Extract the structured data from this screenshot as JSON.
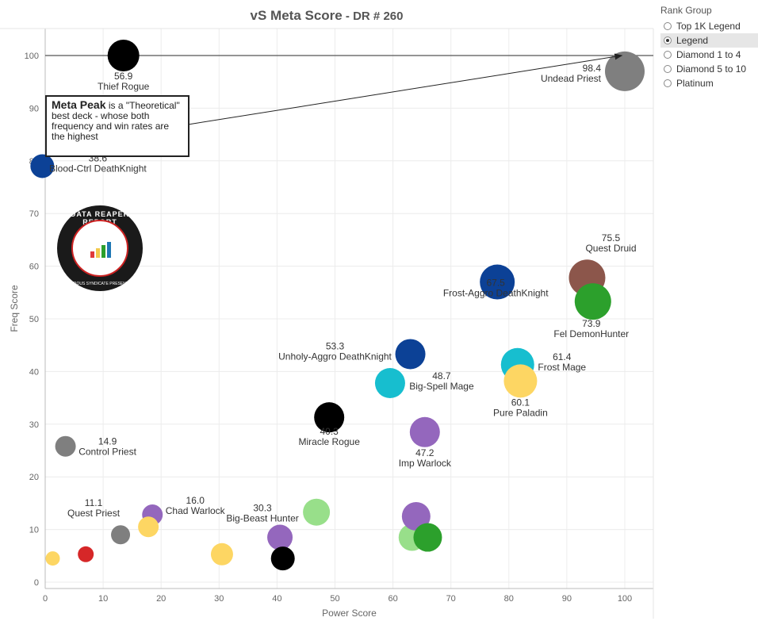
{
  "title": {
    "main": "vS Meta Score",
    "sub": " - DR # 260"
  },
  "legend": {
    "title": "Rank Group",
    "options": [
      {
        "label": "Top 1K Legend",
        "selected": false
      },
      {
        "label": "Legend",
        "selected": true
      },
      {
        "label": "Diamond 1 to 4",
        "selected": false
      },
      {
        "label": "Diamond 5 to 10",
        "selected": false
      },
      {
        "label": "Platinum",
        "selected": false
      }
    ]
  },
  "annotation": {
    "heading": "Meta Peak",
    "text": " is a \"Theoretical\" best deck - whose both frequency and win rates are the highest"
  },
  "logo": {
    "text": "DATA REAPER REPORT",
    "sub": "VICIOUS SYNDICATE PRESENTS"
  },
  "chart_data": {
    "type": "scatter",
    "title": "vS Meta Score - DR # 260",
    "xlabel": "Power Score",
    "ylabel": "Freq Score",
    "xlim": [
      0,
      105
    ],
    "ylim": [
      -1,
      105
    ],
    "x_ticks": [
      0,
      10,
      20,
      30,
      40,
      50,
      60,
      70,
      80,
      90,
      100
    ],
    "y_ticks": [
      0,
      10,
      20,
      30,
      40,
      50,
      60,
      70,
      80,
      90,
      100
    ],
    "grid": true,
    "reference_line_y": 100,
    "points": [
      {
        "name": "Thief Rogue",
        "score": "56.9",
        "x": 13.5,
        "y": 100,
        "color": "#000000",
        "size": 20
      },
      {
        "name": "Undead Priest",
        "score": "98.4",
        "x": 100,
        "y": 97,
        "color": "#7f7f7f",
        "size": 25
      },
      {
        "name": "Blood-Ctrl DeathKnight",
        "score": "38.6",
        "x": -0.5,
        "y": 79,
        "color": "#0c4196",
        "size": 15
      },
      {
        "name": "Quest Druid",
        "score": "75.5",
        "x": 93.5,
        "y": 57.8,
        "color": "#8c564b",
        "size": 23
      },
      {
        "name": "Frost-Aggro DeathKnight",
        "score": "67.5",
        "x": 78,
        "y": 57,
        "color": "#0c4196",
        "size": 22
      },
      {
        "name": "Fel DemonHunter",
        "score": "73.9",
        "x": 94.5,
        "y": 53.3,
        "color": "#2ca02c",
        "size": 23
      },
      {
        "name": "Unholy-Aggro DeathKnight",
        "score": "53.3",
        "x": 63,
        "y": 43.3,
        "color": "#0c4196",
        "size": 19
      },
      {
        "name": "Frost Mage",
        "score": "61.4",
        "x": 81.5,
        "y": 41.3,
        "color": "#17becf",
        "size": 21
      },
      {
        "name": "Pure Paladin",
        "score": "60.1",
        "x": 82,
        "y": 38.2,
        "color": "#fdd663",
        "size": 21
      },
      {
        "name": "Big-Spell Mage",
        "score": "48.7",
        "x": 59.5,
        "y": 37.8,
        "color": "#17becf",
        "size": 19
      },
      {
        "name": "Miracle Rogue",
        "score": "40.3",
        "x": 49,
        "y": 31.3,
        "color": "#000000",
        "size": 19
      },
      {
        "name": "Imp Warlock",
        "score": "47.2",
        "x": 65.5,
        "y": 28.5,
        "color": "#9467bd",
        "size": 19
      },
      {
        "name": "Control Priest",
        "score": "14.9",
        "x": 3.5,
        "y": 25.8,
        "color": "#7f7f7f",
        "size": 13
      },
      {
        "name": "Quest Priest",
        "score": "11.1",
        "x": 13,
        "y": 9,
        "color": "#7f7f7f",
        "size": 12
      },
      {
        "name": "Chad Warlock",
        "score": "16.0",
        "x": 18.5,
        "y": 12.8,
        "color": "#9467bd",
        "size": 13
      },
      {
        "name": "Big-Beast Hunter",
        "score": "30.3",
        "x": 40.5,
        "y": 8.5,
        "color": "#9467bd",
        "size": 16
      },
      {
        "name": "",
        "score": "",
        "x": 17.8,
        "y": 10.5,
        "color": "#fdd663",
        "size": 13
      },
      {
        "name": "",
        "score": "",
        "x": 30.5,
        "y": 5.3,
        "color": "#fdd663",
        "size": 14
      },
      {
        "name": "",
        "score": "",
        "x": 1.3,
        "y": 4.5,
        "color": "#fdd663",
        "size": 9
      },
      {
        "name": "",
        "score": "",
        "x": 7,
        "y": 5.3,
        "color": "#d62728",
        "size": 10
      },
      {
        "name": "",
        "score": "",
        "x": 41,
        "y": 4.5,
        "color": "#000000",
        "size": 15
      },
      {
        "name": "",
        "score": "",
        "x": 46.8,
        "y": 13.3,
        "color": "#98df8a",
        "size": 17
      },
      {
        "name": "",
        "score": "",
        "x": 63.3,
        "y": 8.5,
        "color": "#98df8a",
        "size": 17
      },
      {
        "name": "",
        "score": "",
        "x": 64,
        "y": 12.5,
        "color": "#9467bd",
        "size": 18
      },
      {
        "name": "",
        "score": "",
        "x": 66,
        "y": 8.5,
        "color": "#2ca02c",
        "size": 18
      }
    ]
  }
}
